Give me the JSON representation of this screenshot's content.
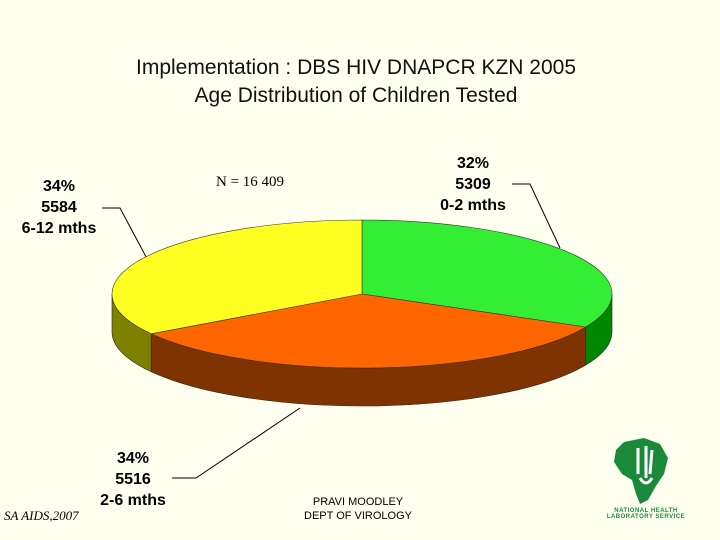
{
  "chart_data": {
    "type": "pie",
    "title": "Implementation : DBS HIV DNAPCR KZN 2005",
    "subtitle": "Age Distribution of Children Tested",
    "total_label": "N = 16 409",
    "slices": [
      {
        "label": "0-2 mths",
        "value": 5309,
        "percent": "32%",
        "value_text": "5309",
        "color": "#33ee33",
        "side_color": "#008800"
      },
      {
        "label": "2-6 mths",
        "value": 5516,
        "percent": "34%",
        "value_text": "5516",
        "color": "#ff6600",
        "side_color": "#7f3300"
      },
      {
        "label": "6-12 mths",
        "value": 5584,
        "percent": "34%",
        "value_text": "5584",
        "color": "#ffff22",
        "side_color": "#808000"
      }
    ]
  },
  "footer": {
    "source": "SA AIDS,2007",
    "author": "PRAVI MOODLEY",
    "department": "DEPT OF VIROLOGY"
  },
  "logo": {
    "text_line1": "NATIONAL HEALTH",
    "text_line2": "LABORATORY SERVICE"
  }
}
